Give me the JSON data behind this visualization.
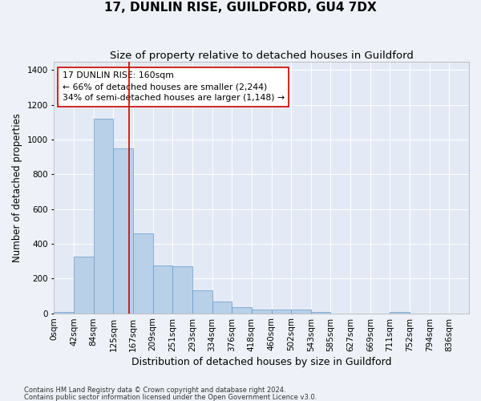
{
  "title": "17, DUNLIN RISE, GUILDFORD, GU4 7DX",
  "subtitle": "Size of property relative to detached houses in Guildford",
  "xlabel": "Distribution of detached houses by size in Guildford",
  "ylabel": "Number of detached properties",
  "footnote1": "Contains HM Land Registry data © Crown copyright and database right 2024.",
  "footnote2": "Contains public sector information licensed under the Open Government Licence v3.0.",
  "categories": [
    "0sqm",
    "42sqm",
    "84sqm",
    "125sqm",
    "167sqm",
    "209sqm",
    "251sqm",
    "293sqm",
    "334sqm",
    "376sqm",
    "418sqm",
    "460sqm",
    "502sqm",
    "543sqm",
    "585sqm",
    "627sqm",
    "669sqm",
    "711sqm",
    "752sqm",
    "794sqm",
    "836sqm"
  ],
  "values": [
    5,
    325,
    1120,
    950,
    460,
    275,
    270,
    130,
    65,
    35,
    20,
    22,
    20,
    5,
    0,
    0,
    0,
    5,
    0,
    0,
    0
  ],
  "bar_color": "#b8d0e8",
  "bar_edge_color": "#6699cc",
  "vline_x_index": 3.78,
  "vline_color": "#cc0000",
  "annotation_text": "17 DUNLIN RISE: 160sqm\n← 66% of detached houses are smaller (2,244)\n34% of semi-detached houses are larger (1,148) →",
  "annotation_box_color": "white",
  "annotation_box_edge_color": "#cc0000",
  "ylim": [
    0,
    1450
  ],
  "yticks": [
    0,
    200,
    400,
    600,
    800,
    1000,
    1200,
    1400
  ],
  "bg_color": "#eef2f8",
  "plot_bg_color": "#e4eaf5",
  "grid_color": "#ffffff",
  "title_fontsize": 11,
  "subtitle_fontsize": 9.5,
  "axis_label_fontsize": 8.5,
  "tick_fontsize": 7.5,
  "annotation_fontsize": 7.8,
  "footnote_fontsize": 6.0
}
